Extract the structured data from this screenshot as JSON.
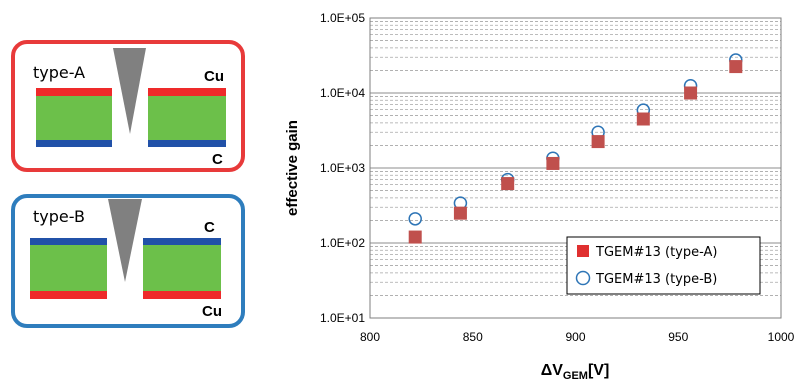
{
  "diagram": {
    "type_a": {
      "label": "type-A",
      "top_layer": "Cu",
      "bottom_layer": "C",
      "frame_color": "#e83a3a"
    },
    "type_b": {
      "label": "type-B",
      "top_layer": "C",
      "bottom_layer": "Cu",
      "frame_color": "#2e7dbd"
    },
    "colors": {
      "cu": "#ee2a2a",
      "c": "#2151a8",
      "insulator": "#6cc04a",
      "needle": "#808080"
    }
  },
  "chart_data": {
    "type": "scatter",
    "xlabel_main": "ΔV",
    "xlabel_sub": "GEM",
    "xlabel_unit": "[V]",
    "ylabel": "effective gain",
    "xlim": [
      800,
      1000
    ],
    "ylim": [
      10,
      100000
    ],
    "yscale": "log",
    "x_ticks": [
      "800",
      "850",
      "900",
      "950",
      "1000"
    ],
    "y_ticks": [
      "1.0E+01",
      "1.0E+02",
      "1.0E+03",
      "1.0E+04",
      "1.0E+05"
    ],
    "grid": true,
    "legend_position": "bottom-right",
    "series": [
      {
        "name": "TGEM#13 (type-A)",
        "marker": "filled-square",
        "color": "#c0504d",
        "x": [
          822,
          844,
          867,
          889,
          911,
          933,
          956,
          978
        ],
        "y": [
          120,
          250,
          620,
          1150,
          2250,
          4500,
          10000,
          22500
        ]
      },
      {
        "name": "TGEM#13 (type-B)",
        "marker": "open-circle",
        "color": "#2e75b6",
        "x": [
          822,
          844,
          867,
          889,
          911,
          933,
          956,
          978
        ],
        "y": [
          210,
          340,
          700,
          1350,
          3000,
          5900,
          12500,
          27500
        ]
      }
    ]
  }
}
